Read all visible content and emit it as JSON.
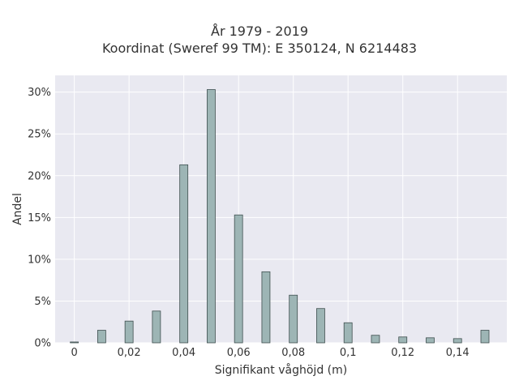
{
  "chart_data": {
    "type": "bar",
    "title": "År 1979 - 2019",
    "subtitle": "Koordinat (Sweref 99 TM): E 350124, N 6214483",
    "xlabel": "Signifikant våghöjd (m)",
    "ylabel": "Andel",
    "x": [
      0.0,
      0.01,
      0.02,
      0.03,
      0.04,
      0.05,
      0.06,
      0.07,
      0.08,
      0.09,
      0.1,
      0.11,
      0.12,
      0.13,
      0.14,
      0.15
    ],
    "values": [
      0.1,
      1.5,
      2.6,
      3.8,
      21.3,
      30.3,
      15.3,
      8.5,
      5.7,
      4.1,
      2.4,
      0.9,
      0.7,
      0.6,
      0.5,
      1.5
    ],
    "xlim": [
      -0.007,
      0.158
    ],
    "ylim": [
      0,
      32
    ],
    "xticks": [
      0,
      0.02,
      0.04,
      0.06,
      0.08,
      0.1,
      0.12,
      0.14
    ],
    "xtick_labels": [
      "0",
      "0,02",
      "0,04",
      "0,06",
      "0,08",
      "0,1",
      "0,12",
      "0,14"
    ],
    "yticks": [
      0,
      5,
      10,
      15,
      20,
      25,
      30
    ],
    "ytick_labels": [
      "0%",
      "5%",
      "10%",
      "15%",
      "20%",
      "25%",
      "30%"
    ],
    "grid": true,
    "colors": {
      "plot_background": "#e9e9f1",
      "grid": "#ffffff",
      "bar_fill": "#9db5b5",
      "bar_stroke": "#3f4f4f"
    }
  }
}
